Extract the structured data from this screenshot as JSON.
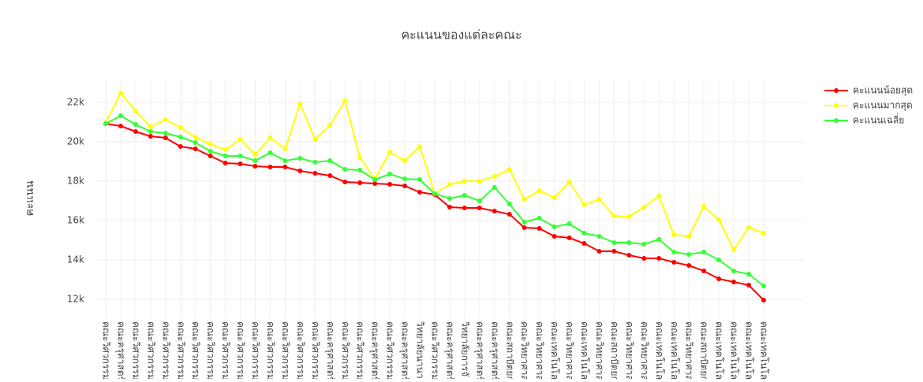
{
  "chart_data": {
    "type": "line",
    "title": "คะแนนของแต่ละคณะ",
    "y_label": "คะแนน",
    "categories": [
      "คณะวิศวกรรมศ",
      "คณะครุศาสตร์อ",
      "คณะวิศวกรรมศ",
      "คณะวิศวกรรมศ",
      "คณะวิศวกรรมศ",
      "คณะวิศวกรรมศ",
      "คณะวิศวกรรมศ",
      "คณะวิศวกรรมศ",
      "คณะวิศวกรรมศ",
      "คณะวิศวกรรมศ",
      "คณะวิศวกรรมศ",
      "คณะวิศวกรรมศ",
      "คณะวิศวกรรมศ",
      "คณะวิศวกรรมศ",
      "คณะวิศวกรรมศ",
      "คณะครุศาสตร์อ",
      "คณะวิศวกรรมศ",
      "คณะวิศวกรรมศ",
      "คณะครุศาสตร์อ",
      "คณะวิศวกรรมศ",
      "คณะครุศาสตร์อ",
      "วิทยาลัยนานาช",
      "คณะวิศวกรรมศ",
      "คณะครุศาสตร์อ",
      "วิทยาลัยการจั",
      "คณะครุศาสตร์อ",
      "คณะครุศาสตร์อ",
      "คณะสถาปัตยก",
      "คณะวิทยาศาสต",
      "คณะวิทยาศาสต",
      "คณะเทคโนโลยี",
      "คณะวิทยาศาสต",
      "คณะเทคโนโลยี",
      "คณะวิทยาศาสต",
      "คณะสถาปัตยก",
      "คณะวิทยาศาสต",
      "คณะวิทยาศาสต",
      "คณะเทคโนโลยี",
      "คณะเทคโนโลยี",
      "คณะวิทยาศาสต",
      "คณะสถาปัตยก",
      "คณะเทคโนโลยี",
      "คณะเทคโนโลยี",
      "คณะเทคโนโลยี",
      "คณะเทคโนโลยี"
    ],
    "series": [
      {
        "name": "คะแนนน้อยสุด",
        "color": "#ff0000",
        "values": [
          20920,
          20800,
          20520,
          20280,
          20200,
          19760,
          19640,
          19280,
          18920,
          18880,
          18760,
          18720,
          18720,
          18520,
          18400,
          18280,
          17960,
          17920,
          17880,
          17840,
          17760,
          17440,
          17320,
          16680,
          16640,
          16640,
          16480,
          16320,
          15640,
          15600,
          15200,
          15120,
          14840,
          14440,
          14440,
          14240,
          14080,
          14080,
          13880,
          13720,
          13440,
          13040,
          12880,
          12720,
          11960
        ]
      },
      {
        "name": "คะแนนมากสุด",
        "color": "#ffff00",
        "values": [
          20960,
          22480,
          21560,
          20760,
          21120,
          20720,
          20240,
          19880,
          19600,
          20120,
          19360,
          20200,
          19640,
          21920,
          20120,
          20840,
          22080,
          19200,
          18120,
          19480,
          19040,
          19760,
          17360,
          17840,
          18000,
          18000,
          18240,
          18600,
          17080,
          17520,
          17160,
          17960,
          16800,
          17080,
          16240,
          16200,
          16680,
          17240,
          15280,
          15200,
          16720,
          16040,
          14520,
          15640,
          15360
        ]
      },
      {
        "name": "คะแนนเฉลี่ย",
        "color": "#33ff33",
        "values": [
          20920,
          21320,
          20880,
          20520,
          20440,
          20240,
          19960,
          19520,
          19280,
          19280,
          19040,
          19440,
          19040,
          19160,
          18960,
          19040,
          18600,
          18560,
          18080,
          18360,
          18120,
          18080,
          17360,
          17120,
          17280,
          17000,
          17680,
          16840,
          15920,
          16120,
          15680,
          15840,
          15360,
          15200,
          14880,
          14880,
          14800,
          15040,
          14400,
          14280,
          14400,
          14000,
          13440,
          13280,
          12680
        ]
      }
    ],
    "ylim": [
      11000,
      23200
    ],
    "yticks": [
      {
        "value": 12000,
        "label": "12k"
      },
      {
        "value": 14000,
        "label": "14k"
      },
      {
        "value": 16000,
        "label": "16k"
      },
      {
        "value": 18000,
        "label": "18k"
      },
      {
        "value": 20000,
        "label": "20k"
      },
      {
        "value": 22000,
        "label": "22k"
      }
    ],
    "grid": true
  }
}
